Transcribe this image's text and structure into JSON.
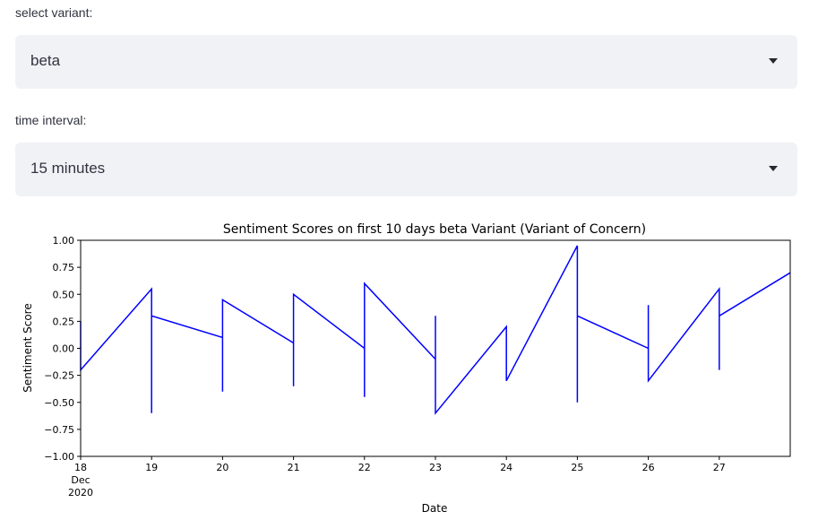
{
  "variant_select": {
    "label": "select variant:",
    "value": "beta"
  },
  "interval_select": {
    "label": "time interval:",
    "value": "15 minutes"
  },
  "icons": {
    "dropdown": "chevron-down-icon"
  },
  "chart_data": {
    "type": "line",
    "title": "Sentiment Scores on first 10 days beta Variant (Variant of Concern)",
    "xlabel": "Date",
    "ylabel": "Sentiment Score",
    "xlim": [
      "2020-12-18",
      "2020-12-28"
    ],
    "ylim": [
      -1.0,
      1.0
    ],
    "yticks": [
      "−1.00",
      "−0.75",
      "−0.50",
      "−0.25",
      "0.00",
      "0.25",
      "0.50",
      "0.75",
      "1.00"
    ],
    "xticks": [
      "18",
      "19",
      "20",
      "21",
      "22",
      "23",
      "24",
      "25",
      "26",
      "27"
    ],
    "xtick_sub": [
      "Dec",
      "2020"
    ],
    "grid": false,
    "series": [
      {
        "color": "#0000ff",
        "x": [
          "2020-12-18",
          "2020-12-18",
          "2020-12-19",
          "2020-12-19",
          "2020-12-19",
          "2020-12-20",
          "2020-12-20",
          "2020-12-20",
          "2020-12-21",
          "2020-12-21",
          "2020-12-21",
          "2020-12-22",
          "2020-12-22",
          "2020-12-22",
          "2020-12-23",
          "2020-12-23",
          "2020-12-23",
          "2020-12-24",
          "2020-12-24",
          "2020-12-24",
          "2020-12-25",
          "2020-12-25",
          "2020-12-25",
          "2020-12-26",
          "2020-12-26",
          "2020-12-26",
          "2020-12-27",
          "2020-12-27",
          "2020-12-27",
          "2020-12-28"
        ],
        "y": [
          0.25,
          -0.2,
          0.55,
          -0.6,
          0.3,
          0.1,
          -0.4,
          0.45,
          0.05,
          -0.35,
          0.5,
          0.0,
          -0.45,
          0.6,
          -0.1,
          0.3,
          -0.6,
          0.2,
          0.05,
          -0.3,
          0.95,
          -0.5,
          0.3,
          0.0,
          0.4,
          -0.3,
          0.55,
          -0.2,
          0.3,
          0.7
        ]
      }
    ]
  }
}
